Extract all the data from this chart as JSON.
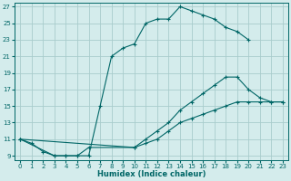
{
  "xlabel": "Humidex (Indice chaleur)",
  "bg_color": "#d4ecec",
  "grid_color": "#a8cccc",
  "line_color": "#006666",
  "xlim": [
    -0.5,
    23.5
  ],
  "ylim": [
    8.5,
    27.5
  ],
  "xticks": [
    0,
    1,
    2,
    3,
    4,
    5,
    6,
    7,
    8,
    9,
    10,
    11,
    12,
    13,
    14,
    15,
    16,
    17,
    18,
    19,
    20,
    21,
    22,
    23
  ],
  "yticks": [
    9,
    11,
    13,
    15,
    17,
    19,
    21,
    23,
    25,
    27
  ],
  "line1_x": [
    0,
    1,
    2,
    3,
    4,
    5,
    6,
    7,
    8,
    9,
    10,
    11,
    12,
    13,
    14,
    15,
    16,
    17,
    18,
    19,
    20
  ],
  "line1_y": [
    11,
    10.5,
    9.5,
    9,
    9,
    9,
    9,
    15,
    21,
    22,
    22.5,
    25,
    25.5,
    25.5,
    27,
    26.5,
    26,
    25.5,
    24.5,
    24,
    23
  ],
  "line2_x": [
    0,
    10,
    11,
    12,
    13,
    14,
    15,
    16,
    17,
    18,
    19,
    20,
    21,
    22,
    23
  ],
  "line2_y": [
    11,
    10,
    11,
    12,
    13,
    14.5,
    15.5,
    16.5,
    17.5,
    18.5,
    18.5,
    17,
    16,
    15.5,
    15.5
  ],
  "line3_x": [
    0,
    3,
    4,
    5,
    6,
    10,
    11,
    12,
    13,
    14,
    15,
    16,
    17,
    18,
    19,
    20,
    21,
    22,
    23
  ],
  "line3_y": [
    11,
    9,
    9,
    9,
    10,
    10,
    10.5,
    11,
    12,
    13,
    13.5,
    14,
    14.5,
    15,
    15.5,
    15.5,
    15.5,
    15.5,
    15.5
  ]
}
